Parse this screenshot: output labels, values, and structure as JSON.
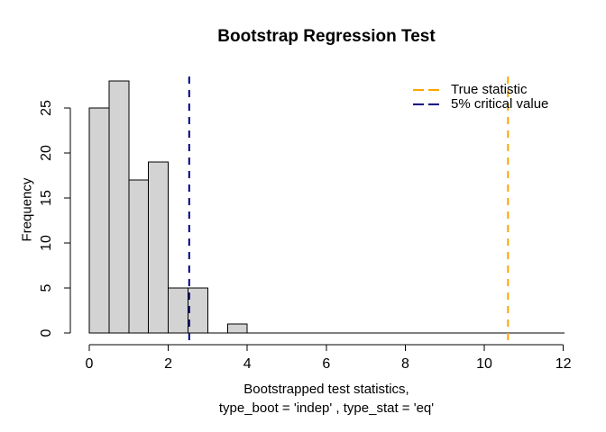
{
  "title": "Bootstrap Regression Test",
  "chart_data": {
    "type": "bar",
    "subtype": "histogram",
    "title": "Bootstrap Regression Test",
    "xlabel_line1": "Bootstrapped test statistics,",
    "xlabel_line2": "type_boot = 'indep' , type_stat = 'eq'",
    "ylabel": "Frequency",
    "bin_breaks": [
      0,
      0.5,
      1,
      1.5,
      2,
      2.5,
      3,
      3.5,
      4
    ],
    "bin_counts": [
      25,
      28,
      17,
      19,
      5,
      5,
      0,
      1
    ],
    "x_ticks": [
      "0",
      "2",
      "4",
      "6",
      "8",
      "10",
      "12"
    ],
    "x_tick_values": [
      0,
      2,
      4,
      6,
      8,
      10,
      12
    ],
    "y_ticks": [
      "0",
      "5",
      "10",
      "15",
      "20",
      "25"
    ],
    "y_tick_values": [
      0,
      5,
      10,
      15,
      20,
      25
    ],
    "xlim": [
      0,
      12
    ],
    "ylim": [
      0,
      28
    ],
    "grid": false,
    "bar_fill": "#D3D3D3",
    "bar_border": "#000000",
    "axis_color": "#000000",
    "vlines": [
      {
        "name": "true-statistic",
        "x": 10.6,
        "color": "#FFA500",
        "style": "dashed"
      },
      {
        "name": "critical-value",
        "x": 2.53,
        "color": "#000080",
        "style": "dashed"
      }
    ],
    "legend": {
      "position": "topright",
      "box": false,
      "entries": [
        {
          "label": "True statistic",
          "color": "#FFA500",
          "line_style": "dashed"
        },
        {
          "label": "5% critical value",
          "color": "#000080",
          "line_style": "dashed"
        }
      ]
    }
  }
}
